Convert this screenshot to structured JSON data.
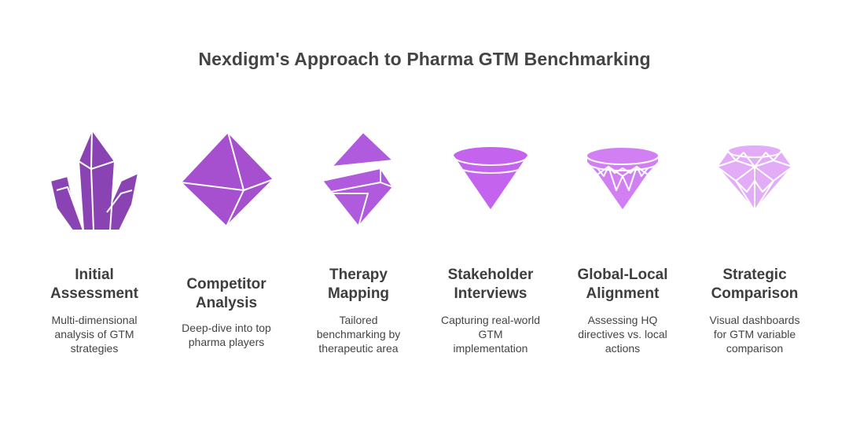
{
  "title": "Nexdigm's Approach to Pharma GTM Benchmarking",
  "steps": [
    {
      "heading_lines": [
        "Initial",
        "Assessment"
      ],
      "desc_lines": [
        "Multi-dimensional",
        "analysis of GTM",
        "strategies"
      ],
      "icon": "crystal-cluster-icon",
      "color": "#8a43b3"
    },
    {
      "heading_lines": [
        "Competitor",
        "Analysis"
      ],
      "desc_lines": [
        "Deep-dive into top",
        "pharma players"
      ],
      "icon": "octahedron-icon",
      "color": "#a650d0"
    },
    {
      "heading_lines": [
        "Therapy",
        "Mapping"
      ],
      "desc_lines": [
        "Tailored",
        "benchmarking by",
        "therapeutic area"
      ],
      "icon": "split-gem-icon",
      "color": "#b05bdd"
    },
    {
      "heading_lines": [
        "Stakeholder",
        "Interviews"
      ],
      "desc_lines": [
        "Capturing real-world",
        "GTM",
        "implementation"
      ],
      "icon": "cone-gem-icon",
      "color": "#c463ee"
    },
    {
      "heading_lines": [
        "Global-Local",
        "Alignment"
      ],
      "desc_lines": [
        "Assessing HQ",
        "directives vs. local",
        "actions"
      ],
      "icon": "faceted-diamond-icon",
      "color": "#d17ff2"
    },
    {
      "heading_lines": [
        "Strategic",
        "Comparison"
      ],
      "desc_lines": [
        "Visual dashboards",
        "for GTM variable",
        "comparison"
      ],
      "icon": "brilliant-diamond-icon",
      "color": "#e3acf7"
    }
  ]
}
